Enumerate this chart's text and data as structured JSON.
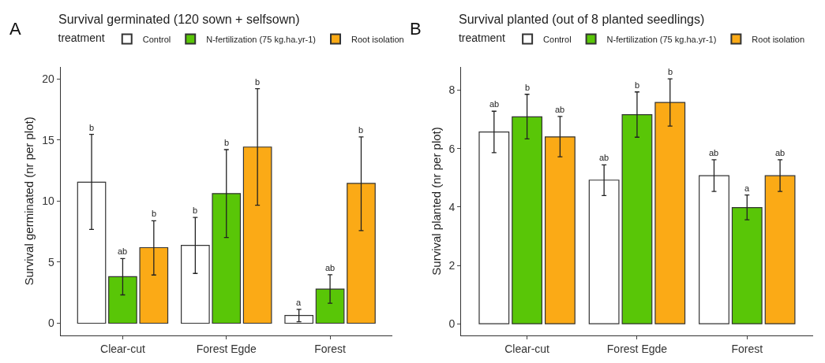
{
  "chart_data": [
    {
      "type": "bar",
      "title": "Survival germinated (120 sown + selfsown)",
      "ylabel": "Survival germinated (nr per plot)",
      "legend_title": "treatment",
      "legend": "top",
      "categories": [
        "Clear-cut",
        "Forest Egde",
        "Forest"
      ],
      "ylim": [
        -1,
        21
      ],
      "yticks": [
        0,
        5,
        10,
        15,
        20
      ],
      "annotations": [
        "A",
        "b",
        "ab",
        "b",
        "b",
        "b",
        "b",
        "a",
        "ab",
        "b"
      ],
      "series": [
        {
          "name": "Control",
          "color": "#ffffff",
          "values": [
            11.55,
            6.38,
            0.64
          ],
          "errors": [
            [
              7.68,
              15.47
            ],
            [
              4.08,
              8.67
            ],
            [
              0.12,
              1.14
            ]
          ]
        },
        {
          "name": "N-fertilization (75 kg.ha.yr-1)",
          "color": "#59c607",
          "values": [
            3.81,
            10.62,
            2.8
          ],
          "errors": [
            [
              2.32,
              5.3
            ],
            [
              7.02,
              14.22
            ],
            [
              1.64,
              3.98
            ]
          ]
        },
        {
          "name": "Root isolation",
          "color": "#fbaa16",
          "values": [
            6.19,
            14.43,
            11.45
          ],
          "errors": [
            [
              3.95,
              8.39
            ],
            [
              9.67,
              19.21
            ],
            [
              7.58,
              15.26
            ]
          ]
        }
      ]
    },
    {
      "type": "bar",
      "title": "Survival planted (out of 8 planted seedlings)",
      "ylabel": "Survival planted (nr per plot)",
      "legend_title": "treatment",
      "legend": "top",
      "categories": [
        "Clear-cut",
        "Forest Egde",
        "Forest"
      ],
      "ylim": [
        -0.4,
        8.8
      ],
      "yticks": [
        0,
        2,
        4,
        6,
        8
      ],
      "annotations": [
        "B",
        "ab",
        "b",
        "ab",
        "ab",
        "b",
        "b",
        "ab",
        "a",
        "ab"
      ],
      "series": [
        {
          "name": "Control",
          "color": "#ffffff",
          "values": [
            6.57,
            4.92,
            5.07
          ],
          "errors": [
            [
              5.86,
              7.28
            ],
            [
              4.39,
              5.44
            ],
            [
              4.53,
              5.62
            ]
          ]
        },
        {
          "name": "N-fertilization (75 kg.ha.yr-1)",
          "color": "#59c607",
          "values": [
            7.09,
            7.16,
            3.98
          ],
          "errors": [
            [
              6.33,
              7.86
            ],
            [
              6.39,
              7.94
            ],
            [
              3.56,
              4.41
            ]
          ]
        },
        {
          "name": "Root isolation",
          "color": "#fbaa16",
          "values": [
            6.4,
            7.58,
            5.07
          ],
          "errors": [
            [
              5.72,
              7.1
            ],
            [
              6.77,
              8.39
            ],
            [
              4.53,
              5.62
            ]
          ]
        }
      ]
    }
  ]
}
